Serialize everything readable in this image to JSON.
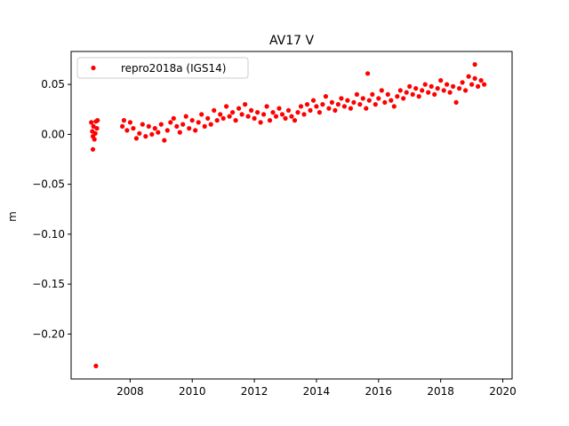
{
  "chart_data": {
    "type": "scatter",
    "title": "AV17 V",
    "xlabel": "",
    "ylabel": "m",
    "xlim": [
      2006.1,
      2020.3
    ],
    "ylim": [
      -0.245,
      0.083
    ],
    "x_ticks": [
      2008,
      2010,
      2012,
      2014,
      2016,
      2018,
      2020
    ],
    "x_tick_labels": [
      "2008",
      "2010",
      "2012",
      "2014",
      "2016",
      "2018",
      "2020"
    ],
    "y_ticks": [
      -0.2,
      -0.15,
      -0.1,
      -0.05,
      0.0,
      0.05
    ],
    "y_tick_labels": [
      "−0.20",
      "−0.15",
      "−0.10",
      "−0.05",
      "0.00",
      "0.05"
    ],
    "grid": false,
    "legend_position": "top-left",
    "series": [
      {
        "name": "repro2018a (IGS14)",
        "color": "#ff0000",
        "marker": "circle",
        "x": [
          2006.75,
          2006.78,
          2006.8,
          2006.82,
          2006.85,
          2006.88,
          2006.9,
          2006.93,
          2006.8,
          2006.95,
          2007.75,
          2007.8,
          2007.9,
          2008.0,
          2008.1,
          2008.2,
          2008.3,
          2008.4,
          2008.5,
          2008.6,
          2008.7,
          2008.8,
          2008.9,
          2009.0,
          2009.1,
          2009.2,
          2009.3,
          2009.4,
          2009.5,
          2009.6,
          2009.7,
          2009.8,
          2009.9,
          2010.0,
          2010.1,
          2010.2,
          2010.3,
          2010.4,
          2010.5,
          2010.6,
          2010.7,
          2010.8,
          2010.9,
          2011.0,
          2011.1,
          2011.2,
          2011.3,
          2011.4,
          2011.5,
          2011.6,
          2011.7,
          2011.8,
          2011.9,
          2012.0,
          2012.1,
          2012.2,
          2012.3,
          2012.4,
          2012.5,
          2012.6,
          2012.7,
          2012.8,
          2012.9,
          2013.0,
          2013.1,
          2013.2,
          2013.3,
          2013.4,
          2013.5,
          2013.6,
          2013.7,
          2013.8,
          2013.9,
          2014.0,
          2014.1,
          2014.2,
          2014.3,
          2014.4,
          2014.5,
          2014.6,
          2014.7,
          2014.8,
          2014.9,
          2015.0,
          2015.1,
          2015.2,
          2015.3,
          2015.4,
          2015.5,
          2015.6,
          2015.7,
          2015.8,
          2015.9,
          2016.0,
          2016.1,
          2016.2,
          2016.3,
          2016.4,
          2016.5,
          2016.6,
          2016.7,
          2016.8,
          2016.9,
          2017.0,
          2017.1,
          2017.2,
          2017.3,
          2017.4,
          2017.5,
          2017.6,
          2017.7,
          2017.8,
          2017.9,
          2018.0,
          2018.1,
          2018.2,
          2018.3,
          2018.4,
          2018.5,
          2018.6,
          2018.7,
          2018.8,
          2018.9,
          2019.0,
          2019.1,
          2019.2,
          2019.3,
          2019.4,
          2015.65,
          2019.1
        ],
        "y": [
          0.012,
          0.003,
          -0.002,
          0.008,
          -0.005,
          0.001,
          0.013,
          0.006,
          -0.015,
          0.014,
          0.008,
          0.014,
          0.004,
          0.012,
          0.006,
          -0.004,
          0.001,
          0.01,
          -0.002,
          0.008,
          0.0,
          0.006,
          0.002,
          0.01,
          -0.006,
          0.004,
          0.012,
          0.016,
          0.008,
          0.002,
          0.01,
          0.018,
          0.006,
          0.014,
          0.004,
          0.012,
          0.02,
          0.008,
          0.016,
          0.01,
          0.024,
          0.014,
          0.02,
          0.016,
          0.028,
          0.018,
          0.022,
          0.014,
          0.026,
          0.02,
          0.03,
          0.018,
          0.024,
          0.016,
          0.022,
          0.012,
          0.02,
          0.028,
          0.014,
          0.022,
          0.018,
          0.026,
          0.02,
          0.016,
          0.024,
          0.018,
          0.014,
          0.022,
          0.028,
          0.02,
          0.03,
          0.024,
          0.034,
          0.028,
          0.022,
          0.03,
          0.038,
          0.026,
          0.032,
          0.024,
          0.03,
          0.036,
          0.028,
          0.034,
          0.026,
          0.032,
          0.04,
          0.03,
          0.036,
          0.026,
          0.034,
          0.04,
          0.03,
          0.036,
          0.044,
          0.032,
          0.04,
          0.034,
          0.028,
          0.038,
          0.044,
          0.036,
          0.042,
          0.048,
          0.04,
          0.046,
          0.038,
          0.044,
          0.05,
          0.042,
          0.048,
          0.04,
          0.046,
          0.054,
          0.044,
          0.05,
          0.042,
          0.048,
          0.032,
          0.046,
          0.052,
          0.044,
          0.058,
          0.05,
          0.056,
          0.048,
          0.054,
          0.05,
          0.061,
          0.07
        ],
        "outliers": [
          {
            "x": 2006.9,
            "y": -0.232
          }
        ]
      }
    ]
  }
}
